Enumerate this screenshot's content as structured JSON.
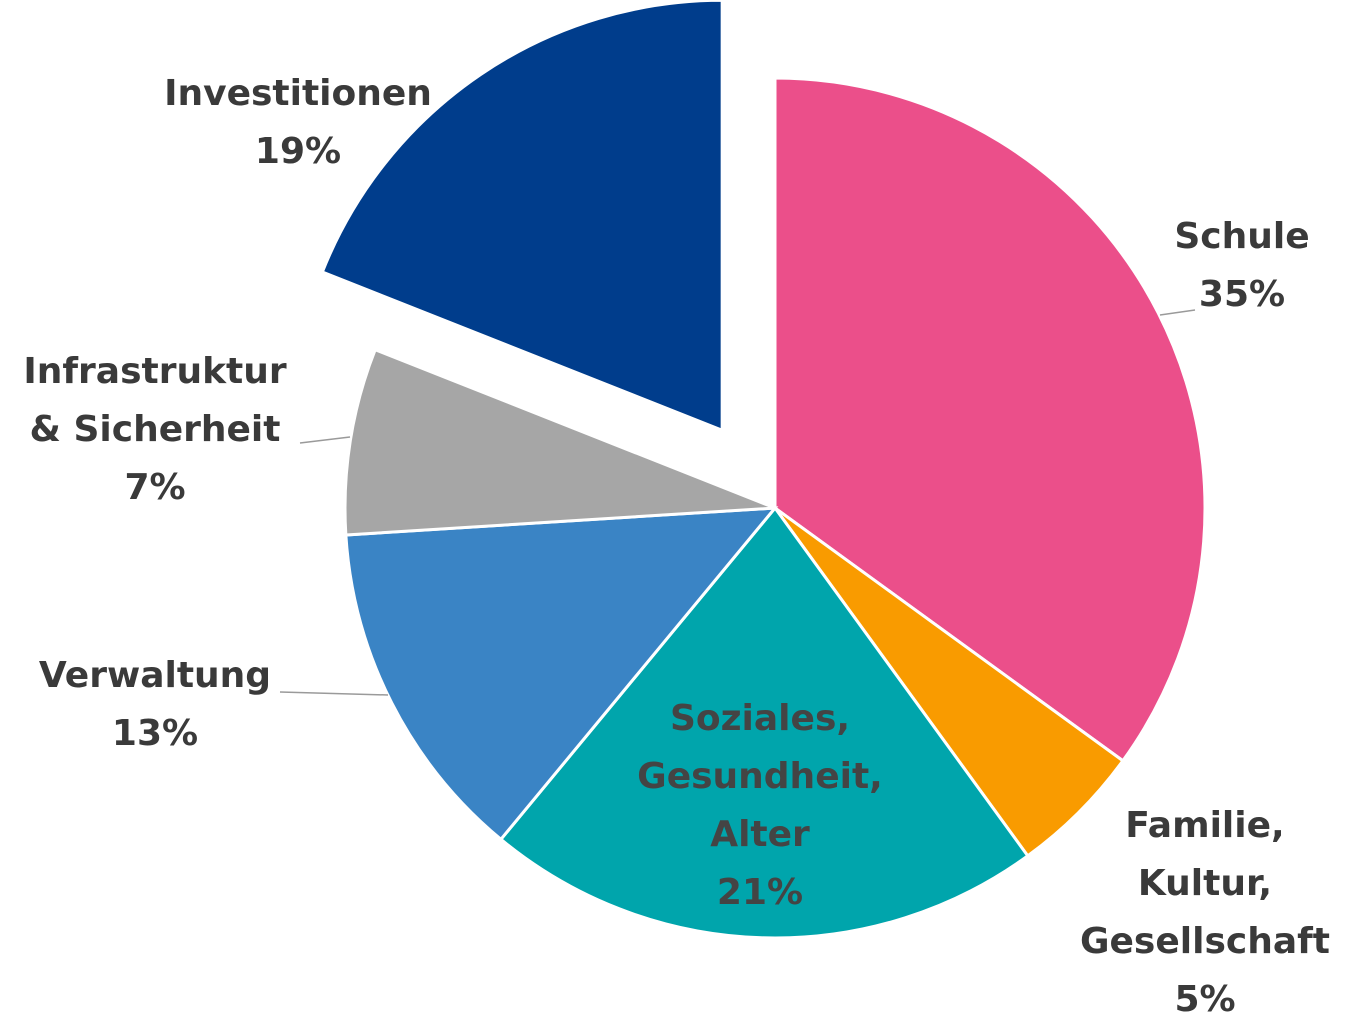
{
  "chart_data": {
    "type": "pie",
    "categories": [
      "Schule",
      "Familie,\nKultur,\nGesellschaft",
      "Soziales,\nGesundheit,\nAlter",
      "Verwaltung",
      "Infrastruktur\n& Sicherheit",
      "Investitionen"
    ],
    "values": [
      35,
      5,
      21,
      13,
      7,
      19
    ],
    "value_labels": [
      "35%",
      "5%",
      "21%",
      "13%",
      "7%",
      "19%"
    ],
    "colors": [
      "#eb4f8a",
      "#f99b00",
      "#00a5ac",
      "#3a84c5",
      "#a6a6a6",
      "#003d8c"
    ],
    "exploded": [
      5
    ]
  }
}
